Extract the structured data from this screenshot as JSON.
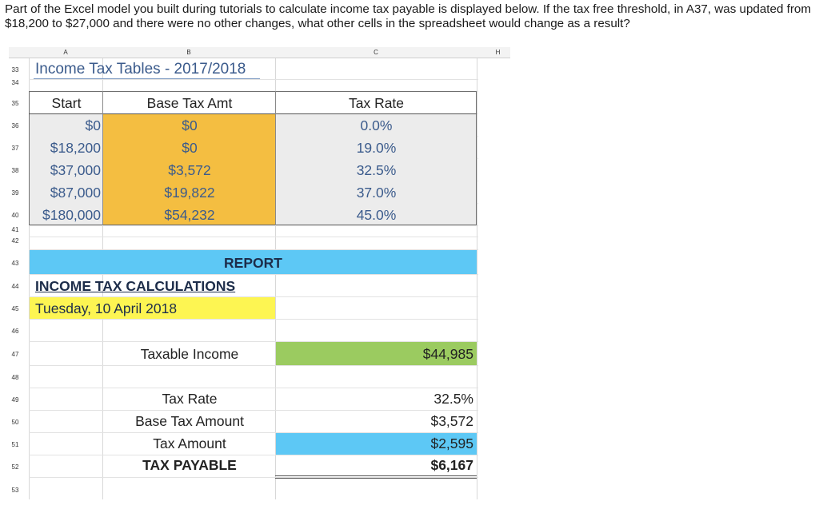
{
  "question": "Part of the Excel model you built during tutorials to calculate income tax payable is displayed below. If the tax free threshold, in A37, was updated from $18,200 to $27,000 and there were no other changes, what other cells in the spreadsheet would change as a result?",
  "column_headers": [
    "A",
    "B",
    "C",
    "H"
  ],
  "row_numbers": [
    "33",
    "34",
    "35",
    "36",
    "37",
    "38",
    "39",
    "40",
    "41",
    "42",
    "43",
    "44",
    "45",
    "46",
    "47",
    "48",
    "49",
    "50",
    "51",
    "52",
    "53"
  ],
  "tax_table": {
    "title": "Income Tax Tables - 2017/2018",
    "headers": {
      "start": "Start",
      "base": "Base Tax Amt",
      "rate": "Tax Rate"
    },
    "rows": [
      {
        "start": "$0",
        "base": "$0",
        "rate": "0.0%"
      },
      {
        "start": "$18,200",
        "base": "$0",
        "rate": "19.0%"
      },
      {
        "start": "$37,000",
        "base": "$3,572",
        "rate": "32.5%"
      },
      {
        "start": "$87,000",
        "base": "$19,822",
        "rate": "37.0%"
      },
      {
        "start": "$180,000",
        "base": "$54,232",
        "rate": "45.0%"
      }
    ]
  },
  "report": {
    "banner": "REPORT",
    "heading": "INCOME TAX CALCULATIONS",
    "date": "Tuesday, 10 April 2018",
    "taxable_income_label": "Taxable Income",
    "taxable_income_value": "$44,985",
    "tax_rate_label": "Tax Rate",
    "tax_rate_value": "32.5%",
    "base_tax_label": "Base Tax Amount",
    "base_tax_value": "$3,572",
    "tax_amount_label": "Tax Amount",
    "tax_amount_value": "$2,595",
    "tax_payable_label": "TAX PAYABLE",
    "tax_payable_value": "$6,167"
  },
  "colors": {
    "orange": "#f4be41",
    "blue": "#5dc8f5",
    "yellow": "#fdf552",
    "green": "#9bcb60",
    "grey_fill": "#ececec"
  }
}
